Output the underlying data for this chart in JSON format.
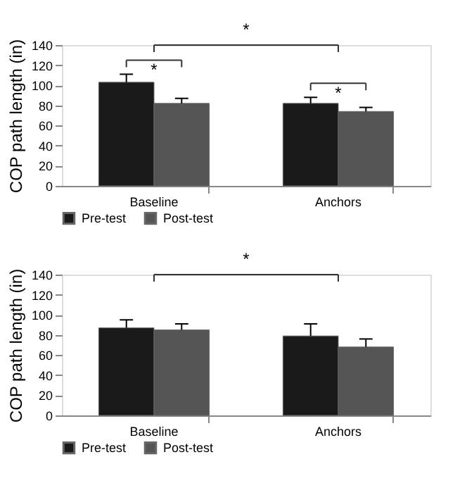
{
  "chart_data": [
    {
      "type": "bar",
      "ylabel": "COP path length (in)",
      "categories": [
        "Baseline",
        "Anchors"
      ],
      "ylim": [
        0,
        140
      ],
      "yticks": [
        0,
        20,
        40,
        60,
        80,
        100,
        120,
        140
      ],
      "legend": "bottom",
      "series": [
        {
          "name": "Pre-test",
          "color": "#1a1a1a",
          "values": [
            103,
            82
          ],
          "errors": [
            [
              103,
              111
            ],
            [
              82,
              88
            ]
          ]
        },
        {
          "name": "Post-test",
          "color": "#555555",
          "values": [
            82,
            74
          ],
          "errors": [
            [
              82,
              87
            ],
            [
              74,
              78
            ]
          ]
        }
      ],
      "annotations": [
        "*",
        "*",
        "*"
      ]
    },
    {
      "type": "bar",
      "ylabel": "COP path length (in)",
      "categories": [
        "Baseline",
        "Anchors"
      ],
      "ylim": [
        0,
        140
      ],
      "yticks": [
        0,
        20,
        40,
        60,
        80,
        100,
        120,
        140
      ],
      "legend": "bottom",
      "series": [
        {
          "name": "Pre-test",
          "color": "#1a1a1a",
          "values": [
            87,
            79
          ],
          "errors": [
            [
              87,
              95
            ],
            [
              79,
              91
            ]
          ]
        },
        {
          "name": "Post-test",
          "color": "#555555",
          "values": [
            85,
            68
          ],
          "errors": [
            [
              85,
              91
            ],
            [
              68,
              76
            ]
          ]
        }
      ],
      "annotations": [
        "*"
      ]
    }
  ]
}
